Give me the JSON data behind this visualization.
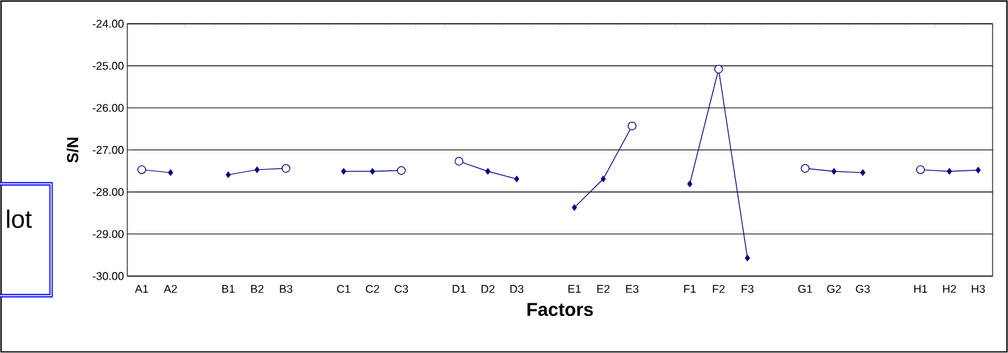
{
  "chart_data": {
    "type": "line",
    "xlabel": "Factors",
    "ylabel": "S/N",
    "categories": [
      "A1",
      "A2",
      null,
      "B1",
      "B2",
      "B3",
      null,
      "C1",
      "C2",
      "C3",
      null,
      "D1",
      "D2",
      "D3",
      null,
      "E1",
      "E2",
      "E3",
      null,
      "F1",
      "F2",
      "F3",
      null,
      "G1",
      "G2",
      "G3",
      null,
      "H1",
      "H2",
      "H3"
    ],
    "series": [
      {
        "color": "#000080",
        "marker": "diamond",
        "values": [
          -27.47,
          -27.54,
          null,
          -27.59,
          -27.47,
          -27.44,
          null,
          -27.51,
          -27.51,
          -27.49,
          null,
          -27.27,
          -27.51,
          -27.69,
          null,
          -28.37,
          -27.69,
          -26.43,
          null,
          -27.81,
          -25.08,
          -29.57,
          null,
          -27.44,
          -27.51,
          -27.54,
          null,
          -27.47,
          -27.51,
          -27.48
        ]
      },
      {
        "type": "scatter",
        "color": "#000080",
        "marker": "circle",
        "values": [
          -27.47,
          null,
          null,
          null,
          null,
          -27.44,
          null,
          null,
          null,
          -27.49,
          null,
          -27.27,
          null,
          null,
          null,
          null,
          null,
          -26.43,
          null,
          null,
          -25.08,
          null,
          null,
          -27.44,
          null,
          null,
          null,
          -27.47,
          null,
          null
        ]
      }
    ],
    "ylim": [
      -30,
      -24
    ],
    "yticks": [
      {
        "value": -30,
        "label": "-30.00"
      },
      {
        "value": -29,
        "label": "-29.00"
      },
      {
        "value": -28,
        "label": "-28.00"
      },
      {
        "value": -27,
        "label": "-27.00"
      },
      {
        "value": -26,
        "label": "-26.00"
      },
      {
        "value": -25,
        "label": "-25.00"
      },
      {
        "value": -24,
        "label": "-24.00"
      }
    ],
    "grid": "y",
    "annotations": [
      "lot"
    ]
  }
}
